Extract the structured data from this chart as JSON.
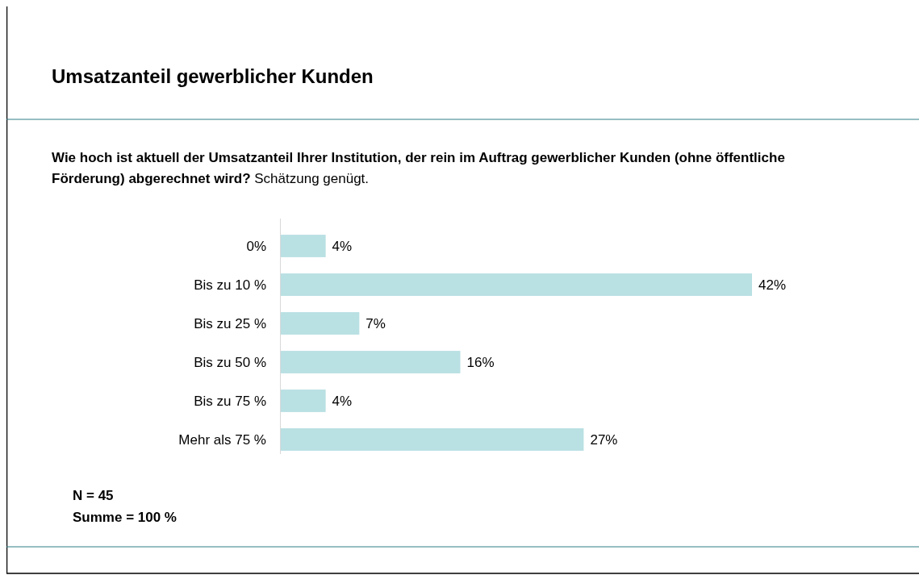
{
  "chart_data": {
    "type": "bar",
    "orientation": "horizontal",
    "title": "Umsatzanteil gewerblicher Kunden",
    "subtitle": "Wie hoch ist aktuell der Umsatzanteil Ihrer Institution, der rein im Auftrag gewerblicher Kunden (ohne öffentliche Förderung) abgerechnet wird? Schätzung genügt.",
    "categories": [
      "0%",
      "Bis zu 10 %",
      "Bis zu 25 %",
      "Bis zu 50 %",
      "Bis zu 75 %",
      "Mehr als 75 %"
    ],
    "values": [
      4,
      42,
      7,
      16,
      4,
      27
    ],
    "value_labels": [
      "4%",
      "42%",
      "7%",
      "16%",
      "4%",
      "27%"
    ],
    "color": "#b9e0e3",
    "annotations": [
      "N = 45",
      "Summe = 100 %"
    ]
  }
}
